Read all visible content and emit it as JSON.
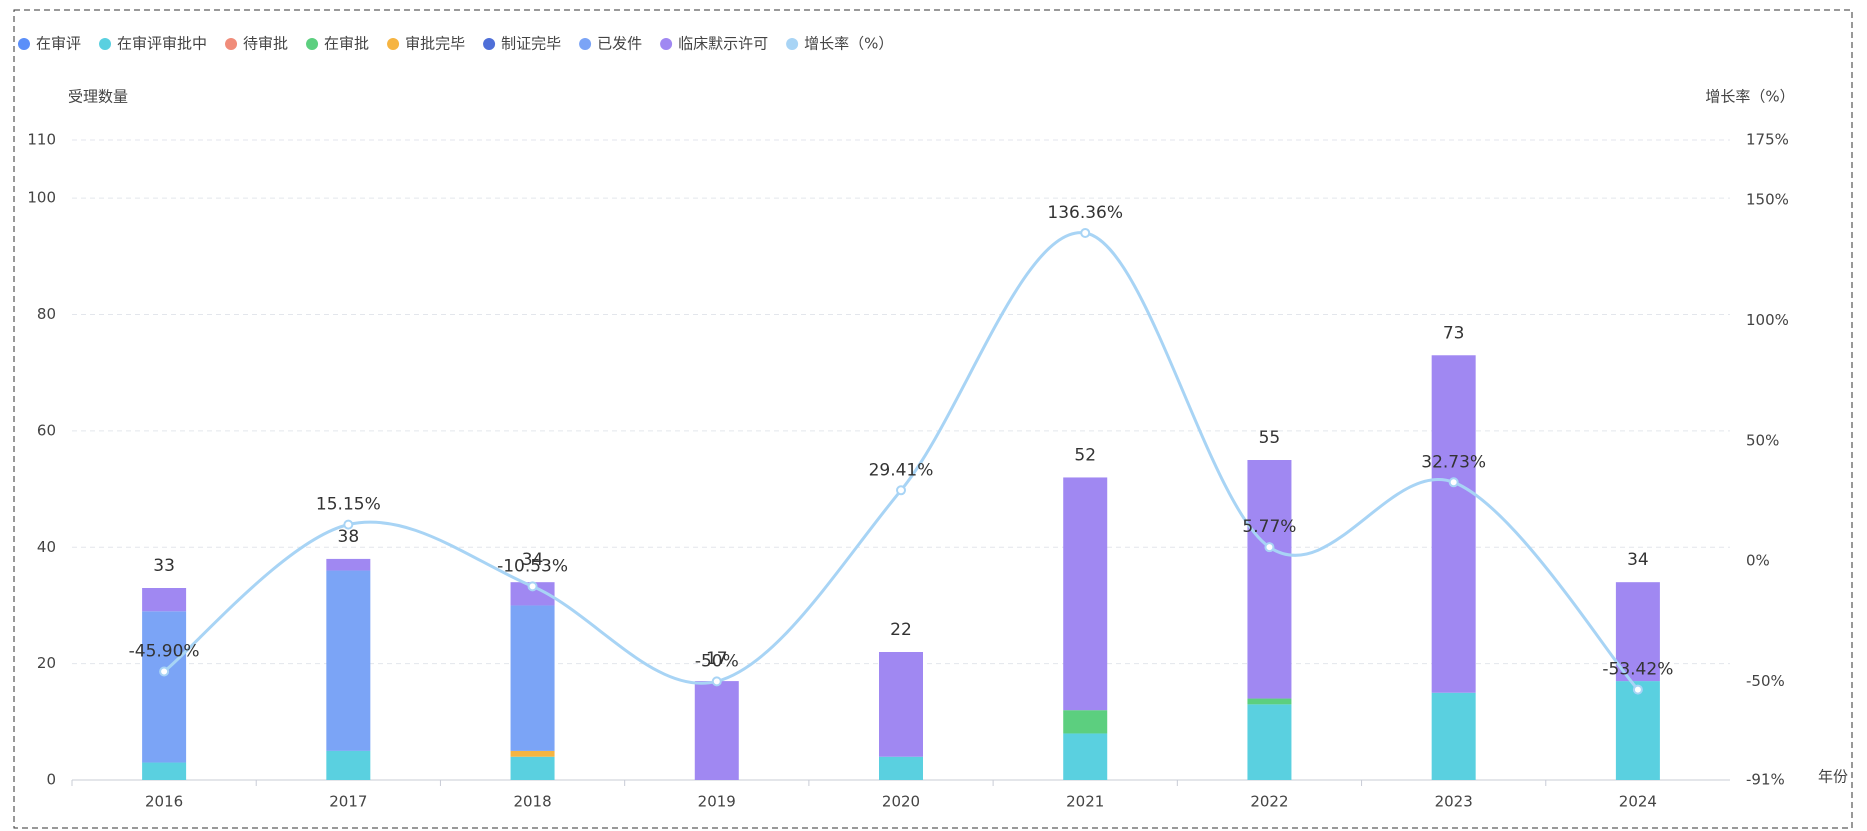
{
  "chart_data": {
    "type": "bar",
    "y_label": "受理数量",
    "y2_label": "增长率（%）",
    "x_label": "年份",
    "categories": [
      "2016",
      "2017",
      "2018",
      "2019",
      "2020",
      "2021",
      "2022",
      "2023",
      "2024"
    ],
    "ylim": [
      0,
      110
    ],
    "yticks": [
      0,
      20,
      40,
      60,
      80,
      100,
      110
    ],
    "y2lim": [
      -91,
      175
    ],
    "y2ticks": [
      {
        "value": -91,
        "label": "-91%"
      },
      {
        "value": -50,
        "label": "-50%"
      },
      {
        "value": 0,
        "label": "0%"
      },
      {
        "value": 50,
        "label": "50%"
      },
      {
        "value": 100,
        "label": "100%"
      },
      {
        "value": 150,
        "label": "150%"
      },
      {
        "value": 175,
        "label": "175%"
      }
    ],
    "grid": true,
    "totals": [
      33,
      38,
      34,
      17,
      22,
      52,
      55,
      73,
      34
    ],
    "series": [
      {
        "name": "在审评",
        "color": "#5b8ff9",
        "values": [
          0,
          0,
          0,
          0,
          0,
          0,
          0,
          0,
          0
        ]
      },
      {
        "name": "在审评审批中",
        "color": "#5ad0e0",
        "values": [
          3,
          5,
          4,
          0,
          4,
          8,
          13,
          15,
          17
        ]
      },
      {
        "name": "待审批",
        "color": "#f08c7a",
        "values": [
          0,
          0,
          0,
          0,
          0,
          0,
          0,
          0,
          0
        ]
      },
      {
        "name": "在审批",
        "color": "#5ccf7f",
        "values": [
          0,
          0,
          0,
          0,
          0,
          4,
          1,
          0,
          0
        ]
      },
      {
        "name": "审批完毕",
        "color": "#f6b441",
        "values": [
          0,
          0,
          1,
          0,
          0,
          0,
          0,
          0,
          0
        ]
      },
      {
        "name": "制证完毕",
        "color": "#4f6fd8",
        "values": [
          0,
          0,
          0,
          0,
          0,
          0,
          0,
          0,
          0
        ]
      },
      {
        "name": "已发件",
        "color": "#7ba4f6",
        "values": [
          26,
          31,
          25,
          0,
          0,
          0,
          0,
          0,
          0
        ]
      },
      {
        "name": "临床默示许可",
        "color": "#a088f2",
        "values": [
          4,
          2,
          4,
          17,
          18,
          40,
          41,
          58,
          17
        ]
      },
      {
        "name": "增长率（%）",
        "color": "#a8d4f5",
        "type": "line",
        "axis": "y2",
        "values": [
          -45.9,
          15.15,
          -10.53,
          -50,
          29.41,
          136.36,
          5.77,
          32.73,
          -53.42
        ],
        "value_labels": [
          "-45.90%",
          "15.15%",
          "-10.53%",
          "-50%",
          "29.41%",
          "136.36%",
          "5.77%",
          "32.73%",
          "-53.42%"
        ]
      }
    ]
  }
}
